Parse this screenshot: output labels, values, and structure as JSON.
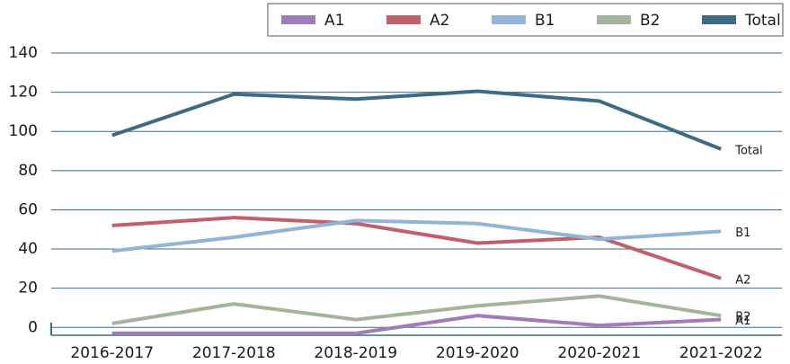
{
  "chart_data": {
    "type": "line",
    "categories": [
      "2016-2017",
      "2017-2018",
      "2018-2019",
      "2019-2020",
      "2020-2021",
      "2021-2022"
    ],
    "series": [
      {
        "name": "A1",
        "color": "#a07cb8",
        "values": [
          -3,
          -3,
          -3,
          6,
          1,
          4
        ]
      },
      {
        "name": "A2",
        "color": "#c0606a",
        "values": [
          52,
          56,
          53,
          43,
          46,
          25
        ]
      },
      {
        "name": "B1",
        "color": "#93b3d8",
        "values": [
          39,
          46,
          54.5,
          53,
          45,
          49
        ]
      },
      {
        "name": "B2",
        "color": "#a3b39c",
        "values": [
          2,
          12,
          4,
          11,
          16,
          6
        ]
      },
      {
        "name": "Total",
        "color": "#3e6b84",
        "values": [
          98,
          119,
          116.5,
          120.5,
          115.5,
          91
        ]
      }
    ],
    "ylim": [
      -4,
      140
    ],
    "yticks": [
      0,
      20,
      40,
      60,
      80,
      100,
      120,
      140
    ],
    "grid": true,
    "legend": "top"
  }
}
